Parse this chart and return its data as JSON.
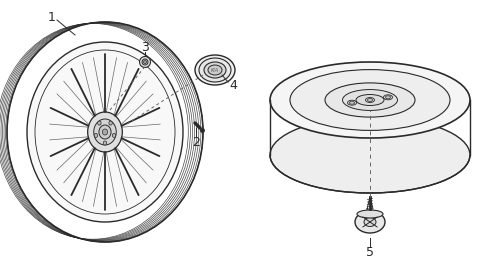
{
  "background_color": "#ffffff",
  "line_color": "#2a2a2a",
  "dashed_color": "#666666",
  "label_fontsize": 9,
  "figsize": [
    4.8,
    2.8
  ],
  "dpi": 100
}
